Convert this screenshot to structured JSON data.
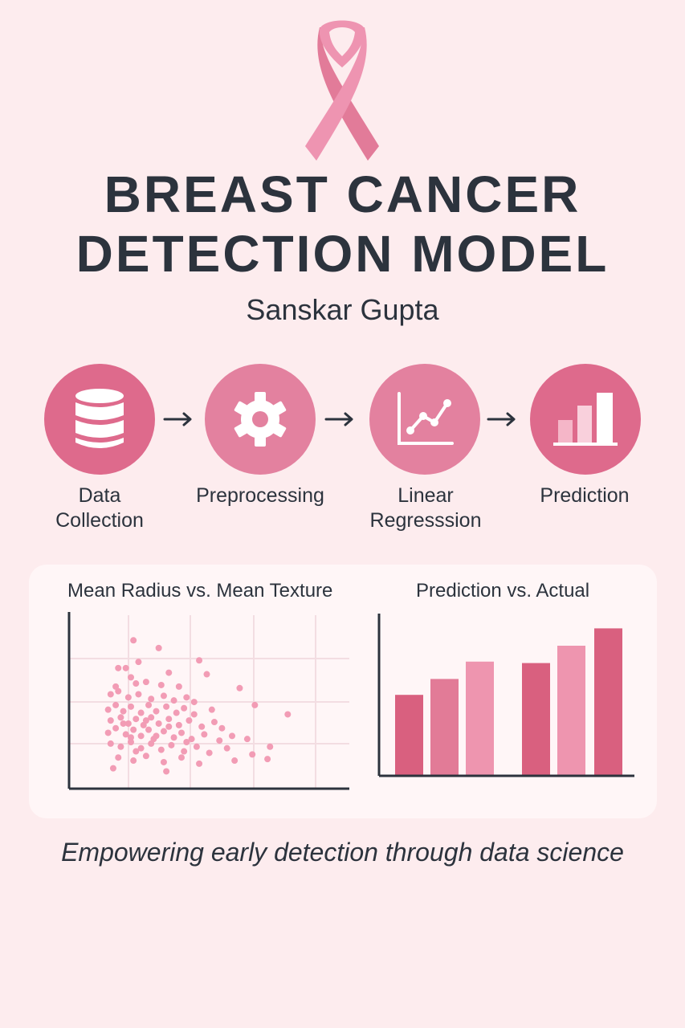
{
  "colors": {
    "background": "#fdecee",
    "text": "#2c333d",
    "ribbon": "#ee94b1",
    "circle_dark": "#de6a8c",
    "circle_light": "#e3819f",
    "scatter_point": "#f29cb5",
    "bar_dark": "#d9607f",
    "bar_mid": "#e27b97",
    "bar_light": "#ee95af"
  },
  "title": {
    "line1": "BREAST CANCER",
    "line2": "DETECTION MODEL"
  },
  "author": "Sanskar Gupta",
  "steps": [
    {
      "label_line1": "Data",
      "label_line2": "Collection",
      "icon": "database-icon"
    },
    {
      "label_line1": "Preprocessing",
      "label_line2": "",
      "icon": "gear-icon"
    },
    {
      "label_line1": "Linear",
      "label_line2": "Regresssion",
      "icon": "line-chart-icon"
    },
    {
      "label_line1": "Prediction",
      "label_line2": "",
      "icon": "bar-chart-icon"
    }
  ],
  "chart_data": [
    {
      "type": "scatter",
      "title": "Mean Radius vs. Mean Texture",
      "xlabel": "",
      "ylabel": "",
      "grid": true,
      "xlim": [
        0,
        10
      ],
      "ylim": [
        0,
        10
      ],
      "points": [
        [
          2.1,
          9.1
        ],
        [
          3.1,
          8.6
        ],
        [
          2.3,
          7.7
        ],
        [
          4.7,
          7.8
        ],
        [
          1.5,
          7.3
        ],
        [
          1.8,
          7.3
        ],
        [
          3.5,
          7.0
        ],
        [
          5.0,
          6.9
        ],
        [
          1.4,
          6.1
        ],
        [
          2.0,
          6.7
        ],
        [
          2.2,
          6.3
        ],
        [
          2.6,
          6.4
        ],
        [
          3.2,
          6.2
        ],
        [
          3.9,
          6.1
        ],
        [
          6.3,
          6.0
        ],
        [
          1.2,
          5.6
        ],
        [
          1.5,
          5.8
        ],
        [
          1.9,
          5.4
        ],
        [
          2.3,
          5.6
        ],
        [
          2.8,
          5.3
        ],
        [
          3.3,
          5.5
        ],
        [
          3.7,
          5.2
        ],
        [
          4.2,
          5.4
        ],
        [
          4.5,
          5.1
        ],
        [
          1.1,
          4.6
        ],
        [
          1.4,
          4.9
        ],
        [
          1.7,
          4.5
        ],
        [
          2.0,
          4.8
        ],
        [
          2.4,
          4.4
        ],
        [
          2.7,
          4.9
        ],
        [
          3.0,
          4.5
        ],
        [
          3.4,
          4.8
        ],
        [
          3.8,
          4.4
        ],
        [
          4.1,
          4.7
        ],
        [
          4.5,
          4.3
        ],
        [
          5.2,
          4.6
        ],
        [
          6.9,
          4.9
        ],
        [
          1.2,
          3.9
        ],
        [
          1.6,
          4.1
        ],
        [
          1.9,
          3.7
        ],
        [
          2.2,
          4.0
        ],
        [
          2.5,
          3.6
        ],
        [
          2.8,
          4.1
        ],
        [
          3.1,
          3.7
        ],
        [
          3.5,
          4.0
        ],
        [
          3.9,
          3.6
        ],
        [
          4.3,
          3.9
        ],
        [
          4.8,
          3.5
        ],
        [
          5.3,
          3.8
        ],
        [
          5.6,
          3.4
        ],
        [
          8.2,
          4.3
        ],
        [
          1.1,
          3.1
        ],
        [
          1.4,
          3.4
        ],
        [
          1.8,
          3.0
        ],
        [
          2.1,
          3.3
        ],
        [
          2.4,
          2.9
        ],
        [
          2.7,
          3.3
        ],
        [
          3.0,
          2.9
        ],
        [
          3.3,
          3.2
        ],
        [
          3.7,
          2.8
        ],
        [
          4.0,
          3.1
        ],
        [
          4.4,
          2.7
        ],
        [
          4.9,
          3.0
        ],
        [
          5.5,
          2.6
        ],
        [
          6.0,
          2.9
        ],
        [
          6.6,
          2.7
        ],
        [
          1.2,
          2.4
        ],
        [
          1.6,
          2.2
        ],
        [
          2.0,
          2.5
        ],
        [
          2.4,
          2.1
        ],
        [
          2.8,
          2.4
        ],
        [
          3.2,
          2.0
        ],
        [
          3.6,
          2.3
        ],
        [
          4.1,
          1.9
        ],
        [
          4.6,
          2.2
        ],
        [
          5.1,
          1.8
        ],
        [
          5.8,
          2.1
        ],
        [
          6.8,
          1.7
        ],
        [
          7.5,
          2.2
        ],
        [
          1.5,
          1.5
        ],
        [
          2.1,
          1.3
        ],
        [
          2.6,
          1.6
        ],
        [
          3.3,
          1.2
        ],
        [
          4.0,
          1.5
        ],
        [
          4.7,
          1.1
        ],
        [
          6.1,
          1.3
        ],
        [
          7.4,
          1.4
        ],
        [
          1.3,
          0.8
        ],
        [
          3.4,
          0.6
        ],
        [
          2.2,
          1.9
        ],
        [
          2.9,
          2.7
        ],
        [
          3.5,
          3.5
        ],
        [
          2.0,
          2.8
        ],
        [
          4.2,
          2.5
        ],
        [
          1.7,
          3.7
        ],
        [
          2.6,
          3.9
        ]
      ]
    },
    {
      "type": "bar",
      "title": "Prediction vs. Actual",
      "xlabel": "",
      "ylabel": "",
      "categories": [
        "",
        "",
        "",
        "",
        "",
        ""
      ],
      "values": [
        56,
        67,
        79,
        78,
        90,
        102
      ],
      "ylim": [
        0,
        110
      ]
    }
  ],
  "tagline": "Empowering early detection through data science"
}
